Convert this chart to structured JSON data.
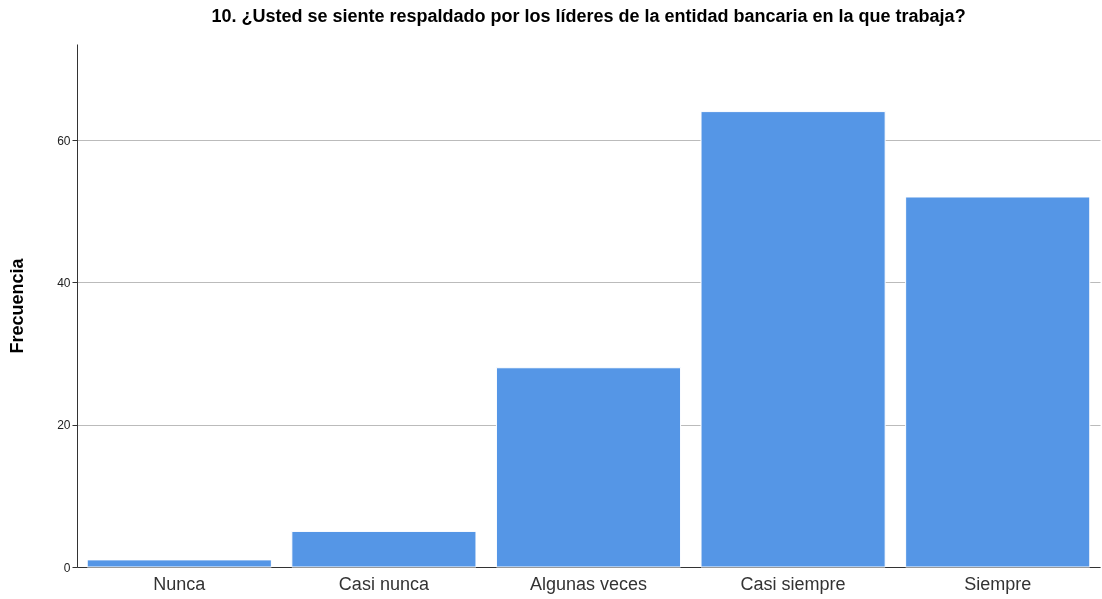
{
  "chart_data": {
    "type": "bar",
    "title": "10. ¿Usted se siente respaldado por los líderes de la entidad bancaria en la que trabaja?",
    "ylabel": "Frecuencia",
    "categories": [
      "Nunca",
      "Casi nunca",
      "Algunas veces",
      "Casi siempre",
      "Siempre"
    ],
    "values": [
      1,
      5,
      28,
      64,
      52
    ],
    "color": "#5596e6",
    "ylim": [
      0,
      73.5
    ],
    "yticks": [
      0,
      20,
      40,
      60
    ],
    "grid": "y"
  }
}
